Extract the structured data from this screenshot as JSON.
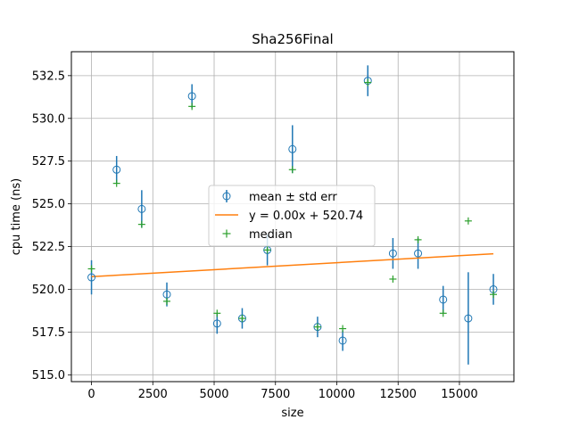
{
  "chart_data": {
    "type": "scatter",
    "title": "Sha256Final",
    "xlabel": "size",
    "ylabel": "cpu time (ns)",
    "xlim": [
      -820,
      17220
    ],
    "ylim": [
      514.6,
      533.9
    ],
    "xticks": [
      0,
      2500,
      5000,
      7500,
      10000,
      12500,
      15000
    ],
    "xtick_labels": [
      "0",
      "2500",
      "5000",
      "7500",
      "10000",
      "12500",
      "15000"
    ],
    "yticks": [
      515.0,
      517.5,
      520.0,
      522.5,
      525.0,
      527.5,
      530.0,
      532.5
    ],
    "ytick_labels": [
      "515.0",
      "517.5",
      "520.0",
      "522.5",
      "525.0",
      "527.5",
      "530.0",
      "532.5"
    ],
    "grid": true,
    "legend_position": "center",
    "series": [
      {
        "name": "mean ± std err",
        "kind": "errorbar",
        "color": "#1f77b4",
        "points": [
          {
            "x": 0,
            "y": 520.7,
            "err": 1.0
          },
          {
            "x": 1024,
            "y": 527.0,
            "err": 0.8
          },
          {
            "x": 2048,
            "y": 524.7,
            "err": 1.1
          },
          {
            "x": 3072,
            "y": 519.7,
            "err": 0.7
          },
          {
            "x": 4096,
            "y": 531.3,
            "err": 0.7
          },
          {
            "x": 5120,
            "y": 518.0,
            "err": 0.6
          },
          {
            "x": 6144,
            "y": 518.3,
            "err": 0.6
          },
          {
            "x": 7168,
            "y": 522.3,
            "err": 0.9
          },
          {
            "x": 8192,
            "y": 528.2,
            "err": 1.4
          },
          {
            "x": 9216,
            "y": 517.8,
            "err": 0.6
          },
          {
            "x": 10240,
            "y": 517.0,
            "err": 0.6
          },
          {
            "x": 11264,
            "y": 532.2,
            "err": 0.9
          },
          {
            "x": 12288,
            "y": 522.1,
            "err": 0.9
          },
          {
            "x": 13312,
            "y": 522.1,
            "err": 0.9
          },
          {
            "x": 14336,
            "y": 519.4,
            "err": 0.8
          },
          {
            "x": 15360,
            "y": 518.3,
            "err": 2.7
          },
          {
            "x": 16384,
            "y": 520.0,
            "err": 0.9
          }
        ]
      },
      {
        "name": "y = 0.00x + 520.74",
        "kind": "line",
        "color": "#ff7f0e",
        "points": [
          {
            "x": 0,
            "y": 520.74
          },
          {
            "x": 16384,
            "y": 522.08
          }
        ]
      },
      {
        "name": "median",
        "kind": "marker",
        "color": "#2ca02c",
        "points": [
          {
            "x": 0,
            "y": 521.2
          },
          {
            "x": 1024,
            "y": 526.2
          },
          {
            "x": 2048,
            "y": 523.8
          },
          {
            "x": 3072,
            "y": 519.3
          },
          {
            "x": 4096,
            "y": 530.7
          },
          {
            "x": 5120,
            "y": 518.6
          },
          {
            "x": 6144,
            "y": 518.3
          },
          {
            "x": 7168,
            "y": 522.3
          },
          {
            "x": 8192,
            "y": 527.0
          },
          {
            "x": 9216,
            "y": 517.8
          },
          {
            "x": 10240,
            "y": 517.7
          },
          {
            "x": 11264,
            "y": 532.1
          },
          {
            "x": 12288,
            "y": 520.6
          },
          {
            "x": 13312,
            "y": 522.9
          },
          {
            "x": 14336,
            "y": 518.6
          },
          {
            "x": 15360,
            "y": 524.0
          },
          {
            "x": 16384,
            "y": 519.7
          }
        ]
      }
    ]
  }
}
